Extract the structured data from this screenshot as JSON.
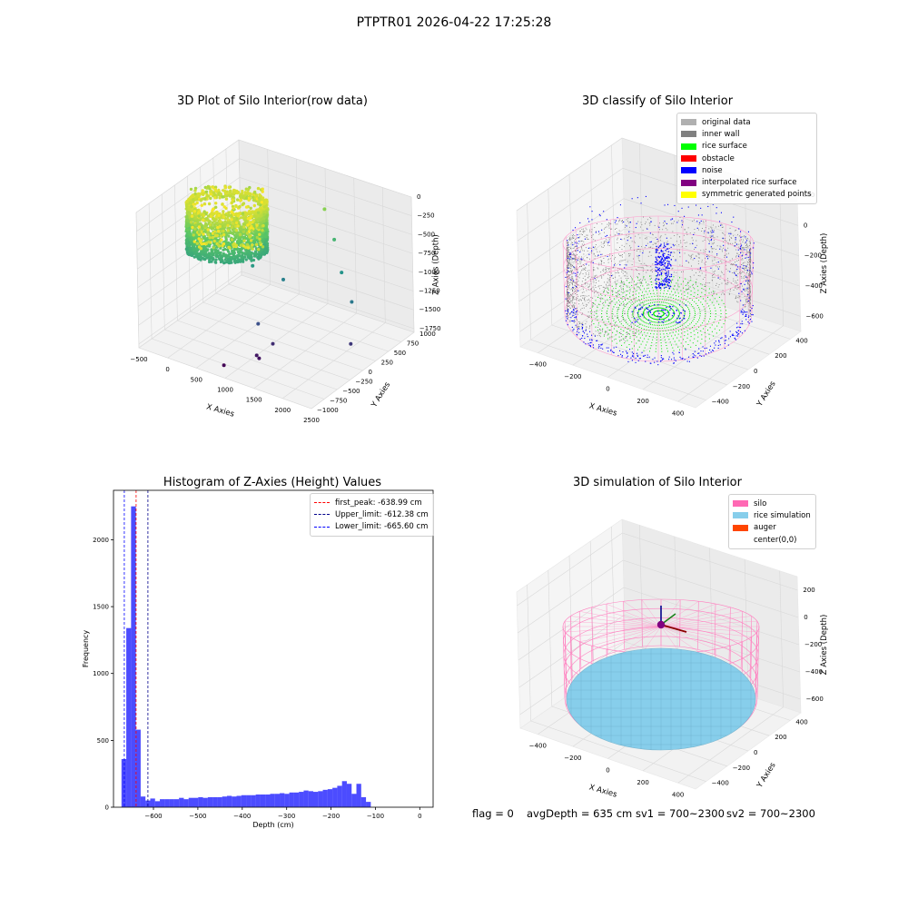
{
  "suptitle": "PTPTR01 2026-04-22 17:25:28",
  "footer": {
    "flag": "flag = 0",
    "avg_depth": "avgDepth = 635 cm",
    "sv1": "sv1 = 700~2300",
    "sv2": "sv2 = 700~2300"
  },
  "chart_data": [
    {
      "type": "scatter3d",
      "title": "3D Plot of Silo Interior(row data)",
      "xlabel": "X Axies",
      "ylabel": "Y Axies",
      "zlabel": "Z Axies (Depth)",
      "xlim": [
        -500,
        2500
      ],
      "ylim": [
        -1000,
        1000
      ],
      "zlim": [
        -1800,
        0
      ],
      "xticks": [
        "−500",
        "0",
        "500",
        "1000",
        "1500",
        "2000",
        "2500"
      ],
      "yticks": [
        "−1000",
        "−750",
        "−500",
        "−250",
        "0",
        "250",
        "500",
        "750",
        "1000"
      ],
      "zticks": [
        "0",
        "−250",
        "−500",
        "−750",
        "−1000",
        "−1250",
        "−1500",
        "−1750"
      ],
      "colormap": "viridis",
      "outlier_points": [
        {
          "x": 1250,
          "y": 700,
          "z": -330
        },
        {
          "x": 1500,
          "y": 600,
          "z": -620
        },
        {
          "x": 1800,
          "y": 400,
          "z": -880
        },
        {
          "x": 2150,
          "y": 200,
          "z": -1080
        },
        {
          "x": 1050,
          "y": 100,
          "z": -1020
        },
        {
          "x": 700,
          "y": -100,
          "z": -830
        },
        {
          "x": 1050,
          "y": -400,
          "z": -1360
        },
        {
          "x": 1300,
          "y": -400,
          "z": -1560
        },
        {
          "x": 1150,
          "y": -550,
          "z": -1680
        },
        {
          "x": 1200,
          "y": -560,
          "z": -1700
        },
        {
          "x": 2300,
          "y": 0,
          "z": -1500
        },
        {
          "x": 800,
          "y": -800,
          "z": -1780
        }
      ]
    },
    {
      "type": "scatter3d",
      "title": "3D classify of Silo Interior",
      "xlabel": "X Axies",
      "ylabel": "Y Axies",
      "zlabel": "Z Axies (Depth)",
      "xlim": [
        -500,
        500
      ],
      "ylim": [
        -500,
        500
      ],
      "zlim": [
        -700,
        200
      ],
      "xticks": [
        "−400",
        "−200",
        "0",
        "200",
        "400"
      ],
      "yticks": [
        "−400",
        "−200",
        "0",
        "200",
        "400"
      ],
      "zticks": [
        "200",
        "0",
        "−200",
        "−400",
        "−600"
      ],
      "legend": [
        {
          "label": "original data",
          "color": "#b0b0b0"
        },
        {
          "label": "inner wall",
          "color": "#808080"
        },
        {
          "label": "rice surface",
          "color": "#00ff00"
        },
        {
          "label": "obstacle",
          "color": "#ff0000"
        },
        {
          "label": "noise",
          "color": "#0000ff"
        },
        {
          "label": "interpolated rice surface",
          "color": "#800080"
        },
        {
          "label": "symmetric generated points",
          "color": "#ffff00"
        }
      ]
    },
    {
      "type": "bar",
      "title": "Histogram of Z-Axies (Height) Values",
      "xlabel": "Depth (cm)",
      "ylabel": "Frequency",
      "xlim": [
        -690,
        30
      ],
      "ylim": [
        0,
        2370
      ],
      "xticks": [
        -600,
        -500,
        -400,
        -300,
        -200,
        -100,
        0
      ],
      "xtick_labels": [
        "−600",
        "−500",
        "−400",
        "−300",
        "−200",
        "−100",
        "0"
      ],
      "yticks": [
        0,
        500,
        1000,
        1500,
        2000
      ],
      "bar_color": "#0000ff",
      "bin_start": -672,
      "bin_width": 10.8,
      "counts": [
        360,
        1340,
        2250,
        580,
        80,
        50,
        65,
        45,
        60,
        60,
        60,
        60,
        70,
        60,
        70,
        70,
        75,
        70,
        75,
        75,
        75,
        80,
        85,
        80,
        85,
        90,
        90,
        90,
        95,
        95,
        95,
        100,
        100,
        105,
        100,
        110,
        110,
        115,
        125,
        120,
        115,
        120,
        130,
        135,
        145,
        160,
        195,
        175,
        100,
        175,
        75,
        40
      ],
      "vlines": [
        {
          "label": "first_peak: -638.99 cm",
          "x": -638.99,
          "color": "#ff0000"
        },
        {
          "label": "Upper_limit: -612.38 cm",
          "x": -612.38,
          "color": "#00008b"
        },
        {
          "label": "Lower_limit: -665.60 cm",
          "x": -665.6,
          "color": "#0000ff"
        }
      ]
    },
    {
      "type": "surface3d",
      "title": "3D simulation of Silo Interior",
      "xlabel": "X Axies",
      "ylabel": "Y Axies",
      "zlabel": "Z Axies (Depth)",
      "xlim": [
        -500,
        500
      ],
      "ylim": [
        -500,
        500
      ],
      "zlim": [
        -700,
        300
      ],
      "xticks": [
        "−400",
        "−200",
        "0",
        "200",
        "400"
      ],
      "yticks": [
        "−400",
        "−200",
        "0",
        "200",
        "400"
      ],
      "zticks": [
        "200",
        "0",
        "−200",
        "−400",
        "−600"
      ],
      "legend": [
        {
          "label": "silo",
          "color": "#ff69b4"
        },
        {
          "label": "rice simulation",
          "color": "#87ceeb"
        },
        {
          "label": "auger",
          "color": "#ff4500"
        },
        {
          "label": "center(0,0)",
          "color": "#ffffff"
        }
      ]
    }
  ]
}
